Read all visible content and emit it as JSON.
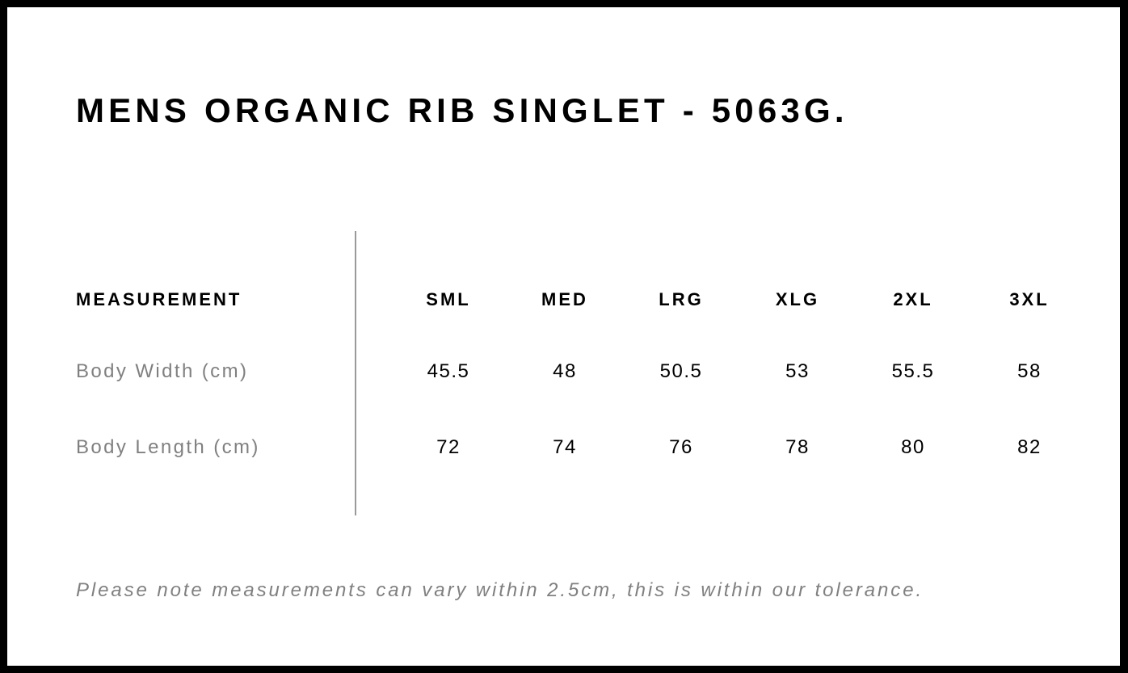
{
  "title": "MENS ORGANIC RIB SINGLET - 5063G.",
  "table": {
    "header_label": "MEASUREMENT",
    "sizes": [
      "SML",
      "MED",
      "LRG",
      "XLG",
      "2XL",
      "3XL"
    ],
    "rows": [
      {
        "label": "Body Width (cm)",
        "values": [
          "45.5",
          "48",
          "50.5",
          "53",
          "55.5",
          "58"
        ]
      },
      {
        "label": "Body Length (cm)",
        "values": [
          "72",
          "74",
          "76",
          "78",
          "80",
          "82"
        ]
      }
    ]
  },
  "note": "Please note measurements can vary within 2.5cm, this is within our tolerance."
}
